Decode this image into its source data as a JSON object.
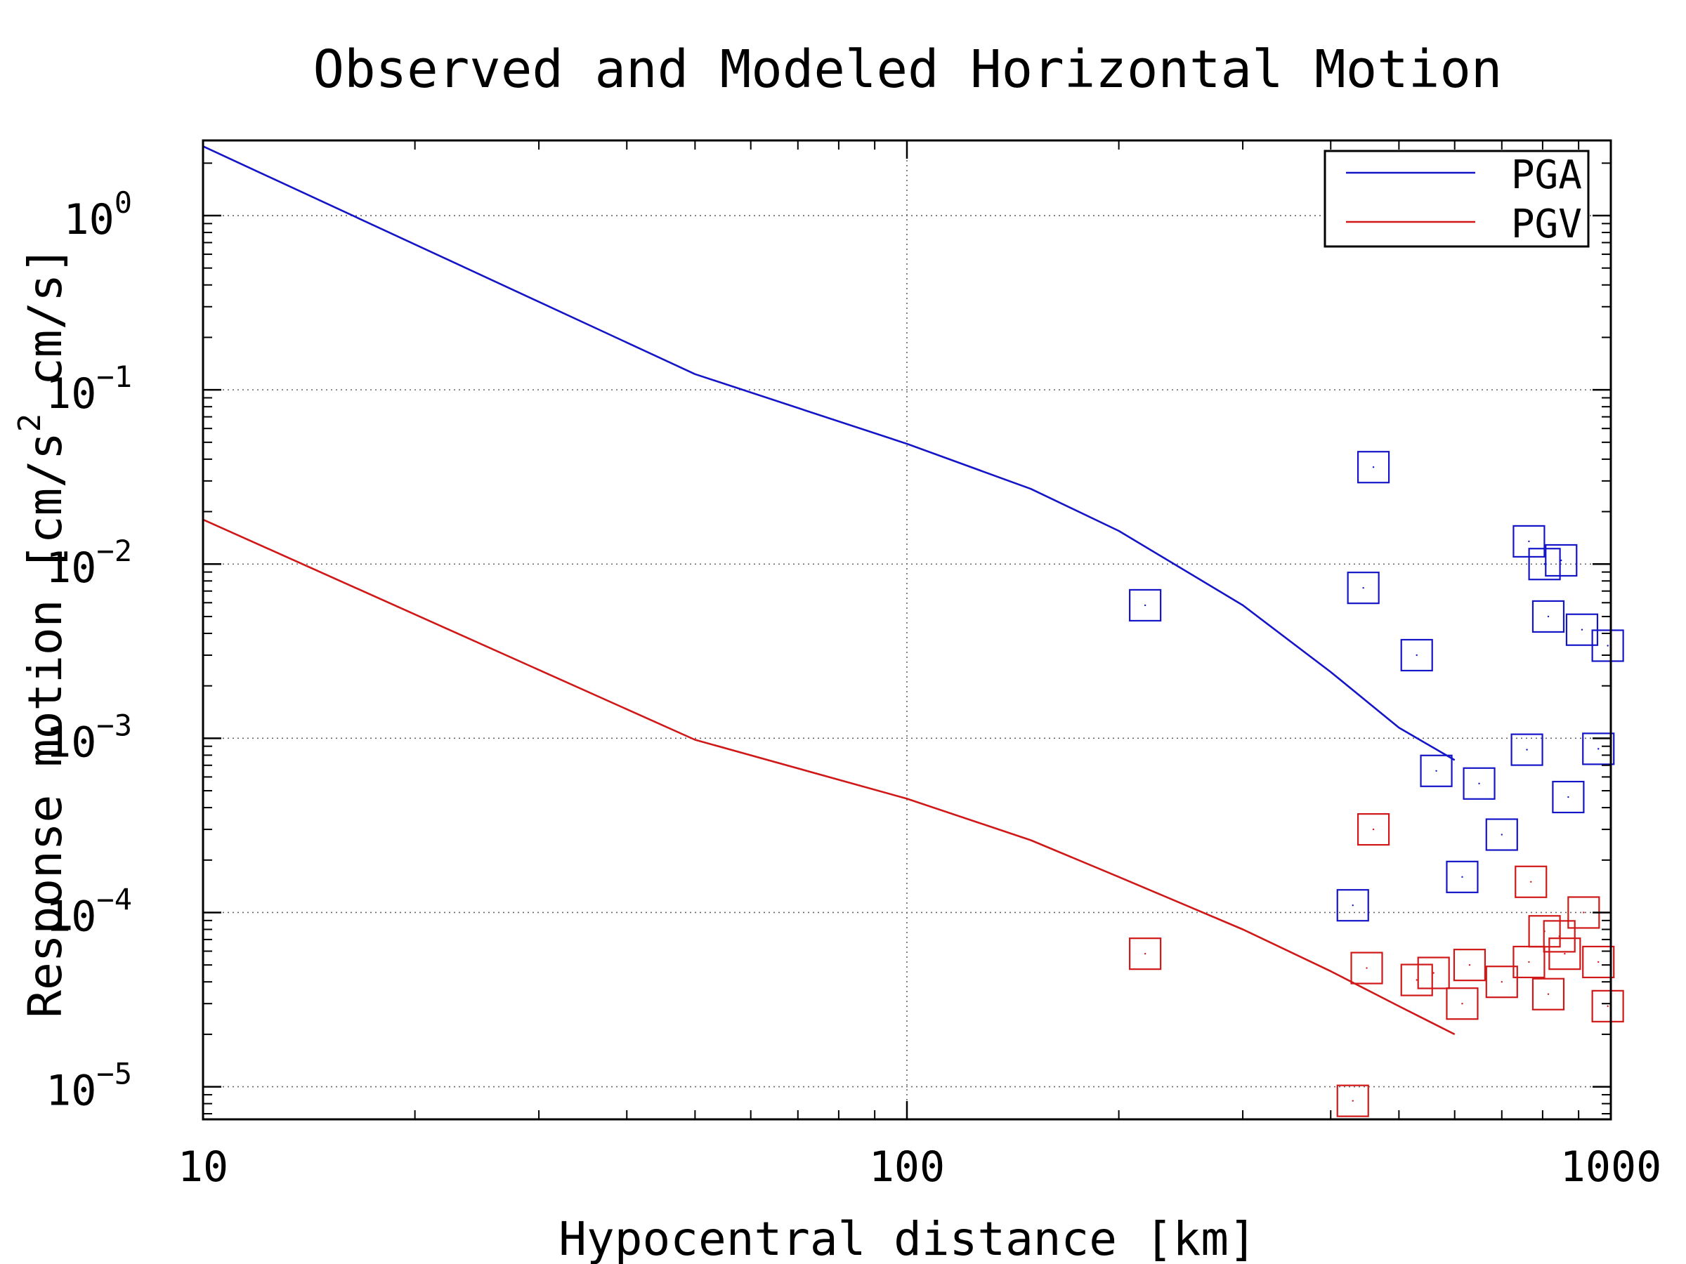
{
  "chart_data": {
    "type": "scatter",
    "title": "Observed and Modeled Horizontal Motion",
    "xlabel": "Hypocentral distance [km]",
    "ylabel_parts": {
      "prefix": "Response motion  [cm/s",
      "superscript": "2",
      "suffix": "  cm/s]"
    },
    "x_scale": "log",
    "y_scale": "log",
    "xlim": [
      10,
      1000
    ],
    "ylim": [
      6.5e-06,
      2.7
    ],
    "x_ticks": [
      {
        "value": 10,
        "label": "10"
      },
      {
        "value": 100,
        "label": "100"
      },
      {
        "value": 1000,
        "label": "1000"
      }
    ],
    "y_ticks": [
      {
        "value": 1e-05,
        "base": "10",
        "exp": "−5"
      },
      {
        "value": 0.0001,
        "base": "10",
        "exp": "−4"
      },
      {
        "value": 0.001,
        "base": "10",
        "exp": "−3"
      },
      {
        "value": 0.01,
        "base": "10",
        "exp": "−2"
      },
      {
        "value": 0.1,
        "base": "10",
        "exp": "−1"
      },
      {
        "value": 1,
        "base": "10",
        "exp": "0"
      }
    ],
    "grid": true,
    "legend_position": "top-right",
    "colors": {
      "PGA": "#1515c8",
      "PGV": "#d01818",
      "axes": "#000000",
      "grid": "#666666"
    },
    "model_lines": [
      {
        "name": "PGA",
        "color": "#1515c8",
        "x": [
          10,
          50,
          100,
          150,
          200,
          300,
          400,
          500,
          600
        ],
        "y": [
          2.5,
          0.123,
          0.049,
          0.027,
          0.0155,
          0.0058,
          0.0024,
          0.00115,
          0.00075
        ]
      },
      {
        "name": "PGV",
        "color": "#d01818",
        "x": [
          10,
          50,
          100,
          150,
          200,
          300,
          400,
          500,
          600
        ],
        "y": [
          0.018,
          0.00098,
          0.00045,
          0.00026,
          0.00016,
          8e-05,
          4.6e-05,
          2.9e-05,
          2e-05
        ]
      }
    ],
    "observed": [
      {
        "name": "PGA",
        "color": "#1515c8",
        "points": [
          {
            "x": 218,
            "y": 0.0058
          },
          {
            "x": 430,
            "y": 0.00011
          },
          {
            "x": 445,
            "y": 0.0073
          },
          {
            "x": 460,
            "y": 0.036
          },
          {
            "x": 530,
            "y": 0.003
          },
          {
            "x": 565,
            "y": 0.00065
          },
          {
            "x": 615,
            "y": 0.00016
          },
          {
            "x": 650,
            "y": 0.00055
          },
          {
            "x": 700,
            "y": 0.00028
          },
          {
            "x": 760,
            "y": 0.00086
          },
          {
            "x": 765,
            "y": 0.0135
          },
          {
            "x": 805,
            "y": 0.01
          },
          {
            "x": 815,
            "y": 0.005
          },
          {
            "x": 850,
            "y": 0.0105
          },
          {
            "x": 870,
            "y": 0.00046
          },
          {
            "x": 910,
            "y": 0.0042
          },
          {
            "x": 960,
            "y": 0.00087
          },
          {
            "x": 990,
            "y": 0.0034
          }
        ]
      },
      {
        "name": "PGV",
        "color": "#d01818",
        "points": [
          {
            "x": 218,
            "y": 5.8e-05
          },
          {
            "x": 430,
            "y": 8.3e-06
          },
          {
            "x": 450,
            "y": 4.8e-05
          },
          {
            "x": 460,
            "y": 0.0003
          },
          {
            "x": 530,
            "y": 4.1e-05
          },
          {
            "x": 560,
            "y": 4.5e-05
          },
          {
            "x": 615,
            "y": 3e-05
          },
          {
            "x": 630,
            "y": 5e-05
          },
          {
            "x": 700,
            "y": 4e-05
          },
          {
            "x": 765,
            "y": 5.2e-05
          },
          {
            "x": 770,
            "y": 0.00015
          },
          {
            "x": 805,
            "y": 7.8e-05
          },
          {
            "x": 815,
            "y": 3.4e-05
          },
          {
            "x": 845,
            "y": 7.3e-05
          },
          {
            "x": 860,
            "y": 5.8e-05
          },
          {
            "x": 915,
            "y": 0.0001
          },
          {
            "x": 960,
            "y": 5.2e-05
          },
          {
            "x": 990,
            "y": 2.9e-05
          }
        ]
      }
    ]
  }
}
